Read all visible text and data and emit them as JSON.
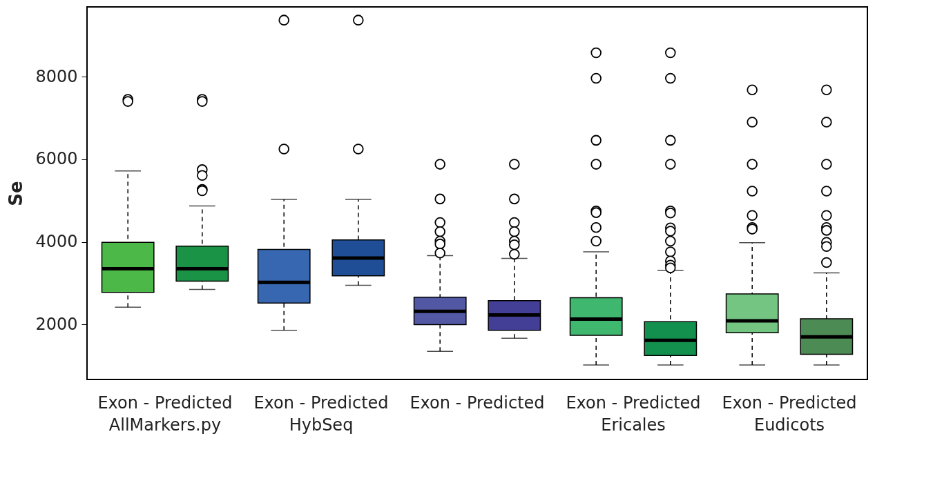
{
  "chart_data": {
    "type": "box",
    "ylabel": "Se",
    "categories": [
      "Exon - Predicted\nAllMarkers.py",
      "Exon - Predicted\nHybSeq",
      "Exon - Predicted",
      "Exon - Predicted\nEricales",
      "Exon - Predicted\nEudicots"
    ],
    "ylim": [
      670,
      9690
    ],
    "yticks": [
      2000,
      4000,
      6000,
      8000
    ],
    "grid": false,
    "marker": "circle",
    "line_style": "dashed",
    "series": [
      {
        "colors": [
          "#4bb847",
          "#3767b0",
          "#5358a5",
          "#40b76e",
          "#74c482"
        ],
        "boxes": [
          {
            "low": 2420,
            "q1": 2780,
            "median": 3350,
            "q3": 3990,
            "high": 5720,
            "outliers": [
              7450,
              7400
            ]
          },
          {
            "low": 1860,
            "q1": 2520,
            "median": 3020,
            "q3": 3820,
            "high": 5030,
            "outliers": [
              9370,
              6250
            ]
          },
          {
            "low": 1350,
            "q1": 2000,
            "median": 2320,
            "q3": 2660,
            "high": 3670,
            "outliers": [
              5880,
              5040,
              4470,
              4250,
              4020,
              3950,
              3730
            ]
          },
          {
            "low": 1020,
            "q1": 1740,
            "median": 2130,
            "q3": 2650,
            "high": 3760,
            "outliers": [
              8580,
              7960,
              6460,
              5880,
              4750,
              4710,
              4350,
              4020
            ]
          },
          {
            "low": 1020,
            "q1": 1800,
            "median": 2090,
            "q3": 2740,
            "high": 3980,
            "outliers": [
              7680,
              6900,
              5880,
              5230,
              4640,
              4350,
              4310
            ]
          }
        ]
      },
      {
        "colors": [
          "#1a9346",
          "#1f4e97",
          "#433f97",
          "#13904d",
          "#4d8b55"
        ],
        "boxes": [
          {
            "low": 2850,
            "q1": 3050,
            "median": 3350,
            "q3": 3900,
            "high": 4870,
            "outliers": [
              7450,
              7400,
              5750,
              5610,
              5270,
              5240
            ]
          },
          {
            "low": 2950,
            "q1": 3180,
            "median": 3610,
            "q3": 4050,
            "high": 5030,
            "outliers": [
              9370,
              6250
            ]
          },
          {
            "low": 1670,
            "q1": 1860,
            "median": 2230,
            "q3": 2580,
            "high": 3600,
            "outliers": [
              5880,
              5040,
              4470,
              4250,
              4020,
              3930,
              3700
            ]
          },
          {
            "low": 1020,
            "q1": 1250,
            "median": 1620,
            "q3": 2070,
            "high": 3310,
            "outliers": [
              8580,
              7960,
              6460,
              5880,
              4750,
              4700,
              4340,
              4260,
              4020,
              3760,
              3540,
              3440,
              3370
            ]
          },
          {
            "low": 1020,
            "q1": 1280,
            "median": 1700,
            "q3": 2140,
            "high": 3250,
            "outliers": [
              7680,
              6900,
              5880,
              5230,
              4640,
              4350,
              4280,
              3990,
              3890,
              3500
            ]
          }
        ]
      }
    ]
  }
}
